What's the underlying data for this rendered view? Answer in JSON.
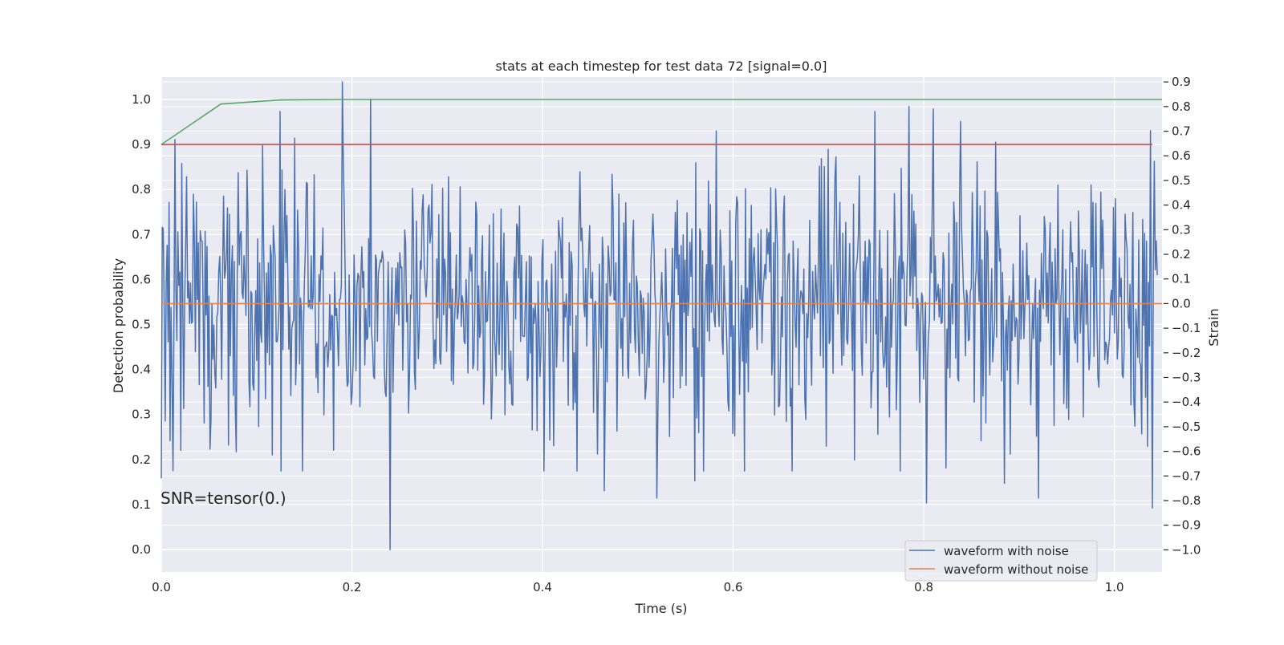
{
  "chart_data": {
    "type": "line",
    "title": "stats at each timestep for test data 72 [signal=0.0]",
    "xlabel": "Time (s)",
    "ylabel_left": "Detection probability",
    "ylabel_right": "Strain",
    "xlim": [
      0.0,
      1.05
    ],
    "ylim_left": [
      -0.05,
      1.05
    ],
    "ylim_right": [
      -1.09,
      0.92
    ],
    "x_ticks": [
      "0.0",
      "0.2",
      "0.4",
      "0.6",
      "0.8",
      "1.0"
    ],
    "y_ticks_left": [
      "0.0",
      "0.1",
      "0.2",
      "0.3",
      "0.4",
      "0.5",
      "0.6",
      "0.7",
      "0.8",
      "0.9",
      "1.0"
    ],
    "y_ticks_right": [
      "−1.0",
      "−0.9",
      "−0.8",
      "−0.7",
      "−0.6",
      "−0.5",
      "−0.4",
      "−0.3",
      "−0.2",
      "−0.1",
      "0.0",
      "0.1",
      "0.2",
      "0.3",
      "0.4",
      "0.5",
      "0.6",
      "0.7",
      "0.8",
      "0.9"
    ],
    "annotation": "SNR=tensor(0.)",
    "grid": true,
    "legend_position": "bottom-right",
    "legend": [
      {
        "label": "waveform with noise",
        "color": "#4c72b0"
      },
      {
        "label": "waveform without noise",
        "color": "#dd8452"
      }
    ],
    "series": [
      {
        "name": "waveform with noise",
        "axis": "right",
        "color": "#4c72b0",
        "x_start": 0.0,
        "x_end": 1.045,
        "n_points": 1024,
        "key_points": {
          "x": [
            0.0,
            0.19,
            0.22,
            0.24,
            0.465,
            0.52,
            0.56,
            0.785,
            0.803,
            0.81,
            0.885,
            0.92,
            1.04
          ],
          "y": [
            -0.71,
            0.9,
            0.83,
            -1.0,
            -0.76,
            -0.79,
            -0.72,
            0.8,
            -0.81,
            0.79,
            -0.73,
            -0.79,
            -0.83
          ]
        }
      },
      {
        "name": "waveform without noise",
        "axis": "right",
        "color": "#dd8452",
        "x": [
          0.0,
          1.05
        ],
        "y": [
          0.0,
          0.0
        ]
      },
      {
        "axis": "left",
        "color": "#55a868",
        "x": [
          0.0,
          0.0625,
          0.125,
          0.1875,
          1.05
        ],
        "y": [
          0.9,
          0.99,
          0.999,
          1.0,
          1.0
        ]
      },
      {
        "axis": "left",
        "color": "#c44e52",
        "x": [
          0.0,
          1.04
        ],
        "y": [
          0.9,
          0.9
        ]
      }
    ]
  }
}
